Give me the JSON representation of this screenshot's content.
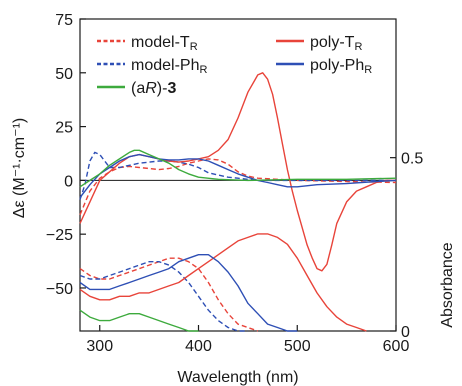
{
  "chart_data": {
    "type": "line",
    "xlabel": "Wavelength (nm)",
    "ylabel_left": "Δε (M⁻¹·cm⁻¹)",
    "ylabel_right": "Absorbance",
    "xlim": [
      280,
      600
    ],
    "ylim_left": [
      -70,
      75
    ],
    "ylim_right": [
      0,
      0.9
    ],
    "x_ticks": [
      300,
      400,
      500,
      600
    ],
    "y_ticks_left": [
      75,
      50,
      25,
      0,
      -25,
      -50
    ],
    "y_ticks_right": [
      0.5,
      0
    ],
    "x_tick_labels": [
      "300",
      "400",
      "500",
      "600"
    ],
    "y_tick_labels_left": [
      "75",
      "50",
      "25",
      "0",
      "−25",
      "−50"
    ],
    "y_tick_labels_right": [
      "0.5",
      "0"
    ],
    "legend": {
      "placement": "top",
      "entries": [
        {
          "series": "model-T",
          "main": "model-T",
          "sub": "R",
          "color": "#e8443a",
          "dashed": true
        },
        {
          "series": "poly-T",
          "main": "poly-T",
          "sub": "R",
          "color": "#e8443a",
          "dashed": false
        },
        {
          "series": "model-Ph",
          "main": "model-Ph",
          "sub": "R",
          "color": "#2e4fb5",
          "dashed": true
        },
        {
          "series": "poly-Ph",
          "main": "poly-Ph",
          "sub": "R",
          "color": "#2e4fb5",
          "dashed": false
        },
        {
          "series": "aR3",
          "prefix": "(a",
          "italic": "R",
          "suffix": ")-",
          "bold": "3",
          "color": "#3daa3d",
          "dashed": false
        }
      ]
    },
    "cd_series": [
      {
        "key": "model-T",
        "color": "#e8443a",
        "dashed": true,
        "x": [
          280,
          290,
          300,
          310,
          320,
          330,
          340,
          350,
          360,
          370,
          380,
          390,
          400,
          410,
          420,
          430,
          440,
          450,
          460,
          480,
          500,
          550,
          600
        ],
        "y": [
          -16,
          -5,
          1,
          4,
          6,
          6.5,
          6,
          5.5,
          5,
          5.5,
          6.5,
          8,
          9,
          10,
          9.5,
          7.5,
          4,
          2,
          1,
          0.5,
          0,
          -0.5,
          -1
        ]
      },
      {
        "key": "model-Ph",
        "color": "#2e4fb5",
        "dashed": true,
        "x": [
          280,
          285,
          290,
          295,
          300,
          310,
          320,
          330,
          340,
          350,
          360,
          370,
          380,
          390,
          400,
          410,
          420,
          430,
          440,
          450,
          460,
          480,
          500,
          550,
          600
        ],
        "y": [
          -9,
          -2,
          9,
          13,
          12,
          6,
          6,
          7,
          8,
          8.5,
          9,
          9,
          8.5,
          7.5,
          6,
          3.5,
          2.5,
          1.5,
          1,
          0.5,
          0,
          0,
          0,
          0,
          0
        ]
      },
      {
        "key": "poly-T",
        "color": "#e8443a",
        "dashed": false,
        "x": [
          280,
          290,
          300,
          310,
          320,
          330,
          340,
          350,
          360,
          370,
          380,
          390,
          400,
          410,
          420,
          430,
          440,
          450,
          460,
          465,
          470,
          475,
          480,
          485,
          490,
          495,
          500,
          505,
          510,
          515,
          520,
          525,
          530,
          535,
          540,
          550,
          560,
          570,
          580,
          590,
          600
        ],
        "y": [
          -20,
          -10,
          0,
          4,
          8,
          11,
          12,
          11,
          10,
          9,
          8.5,
          9,
          10,
          11,
          14,
          19,
          29,
          41,
          49,
          50,
          47,
          40,
          29,
          17,
          5,
          -5,
          -14,
          -22,
          -30,
          -36,
          -41,
          -42,
          -39,
          -30,
          -20,
          -10,
          -5,
          -3,
          -1,
          0,
          0
        ]
      },
      {
        "key": "poly-Ph",
        "color": "#2e4fb5",
        "dashed": false,
        "x": [
          280,
          290,
          300,
          310,
          320,
          330,
          340,
          350,
          360,
          370,
          380,
          390,
          400,
          410,
          420,
          430,
          440,
          450,
          460,
          470,
          480,
          490,
          500,
          520,
          550,
          580,
          600
        ],
        "y": [
          -8,
          -2,
          3,
          6,
          9,
          11,
          12,
          11,
          10,
          9.5,
          9.5,
          10,
          10,
          9,
          7,
          5,
          3,
          1.5,
          0,
          -1,
          -2,
          -3,
          -3,
          -2,
          -1.5,
          -0.5,
          0
        ]
      },
      {
        "key": "aR3",
        "color": "#3daa3d",
        "dashed": false,
        "x": [
          280,
          290,
          300,
          310,
          320,
          330,
          335,
          340,
          350,
          360,
          370,
          380,
          390,
          400,
          420,
          450,
          500,
          550,
          600
        ],
        "y": [
          -3,
          0,
          3,
          7,
          10,
          13,
          14,
          14,
          12,
          10,
          8,
          5,
          3,
          1.5,
          0.5,
          0,
          0.5,
          0.5,
          1
        ]
      }
    ],
    "abs_series": [
      {
        "key": "model-T",
        "color": "#e8443a",
        "dashed": true,
        "x": [
          280,
          290,
          300,
          310,
          320,
          330,
          340,
          350,
          360,
          370,
          380,
          390,
          400,
          410,
          420,
          430,
          440,
          450,
          460
        ],
        "y": [
          0.18,
          0.16,
          0.15,
          0.15,
          0.16,
          0.17,
          0.18,
          0.19,
          0.2,
          0.21,
          0.21,
          0.2,
          0.18,
          0.14,
          0.09,
          0.05,
          0.02,
          0.01,
          0
        ]
      },
      {
        "key": "model-Ph",
        "color": "#2e4fb5",
        "dashed": true,
        "x": [
          280,
          290,
          300,
          310,
          320,
          330,
          340,
          350,
          360,
          370,
          380,
          390,
          400,
          410,
          420,
          430,
          440,
          450
        ],
        "y": [
          0.16,
          0.15,
          0.15,
          0.16,
          0.17,
          0.18,
          0.19,
          0.2,
          0.2,
          0.19,
          0.17,
          0.14,
          0.1,
          0.06,
          0.03,
          0.01,
          0,
          0
        ]
      },
      {
        "key": "poly-T",
        "color": "#e8443a",
        "dashed": false,
        "x": [
          280,
          290,
          300,
          310,
          320,
          330,
          340,
          350,
          360,
          370,
          380,
          390,
          400,
          410,
          420,
          430,
          440,
          450,
          460,
          470,
          480,
          490,
          500,
          510,
          520,
          530,
          540,
          550,
          560,
          570
        ],
        "y": [
          0.12,
          0.1,
          0.09,
          0.09,
          0.1,
          0.1,
          0.11,
          0.11,
          0.12,
          0.13,
          0.14,
          0.16,
          0.18,
          0.2,
          0.22,
          0.24,
          0.26,
          0.27,
          0.28,
          0.28,
          0.27,
          0.25,
          0.21,
          0.16,
          0.11,
          0.07,
          0.04,
          0.02,
          0.01,
          0
        ]
      },
      {
        "key": "poly-Ph",
        "color": "#2e4fb5",
        "dashed": false,
        "x": [
          280,
          290,
          300,
          310,
          320,
          330,
          340,
          350,
          360,
          370,
          380,
          390,
          400,
          410,
          420,
          430,
          440,
          450,
          460,
          470,
          480,
          490,
          500
        ],
        "y": [
          0.14,
          0.12,
          0.12,
          0.12,
          0.13,
          0.14,
          0.15,
          0.16,
          0.17,
          0.18,
          0.2,
          0.21,
          0.22,
          0.22,
          0.2,
          0.17,
          0.13,
          0.08,
          0.05,
          0.02,
          0.01,
          0,
          0
        ]
      },
      {
        "key": "aR3",
        "color": "#3daa3d",
        "dashed": false,
        "x": [
          280,
          290,
          300,
          310,
          320,
          330,
          340,
          350,
          360,
          370,
          380,
          390,
          400
        ],
        "y": [
          0.06,
          0.04,
          0.03,
          0.03,
          0.04,
          0.05,
          0.05,
          0.04,
          0.03,
          0.02,
          0.01,
          0,
          0
        ]
      }
    ]
  }
}
